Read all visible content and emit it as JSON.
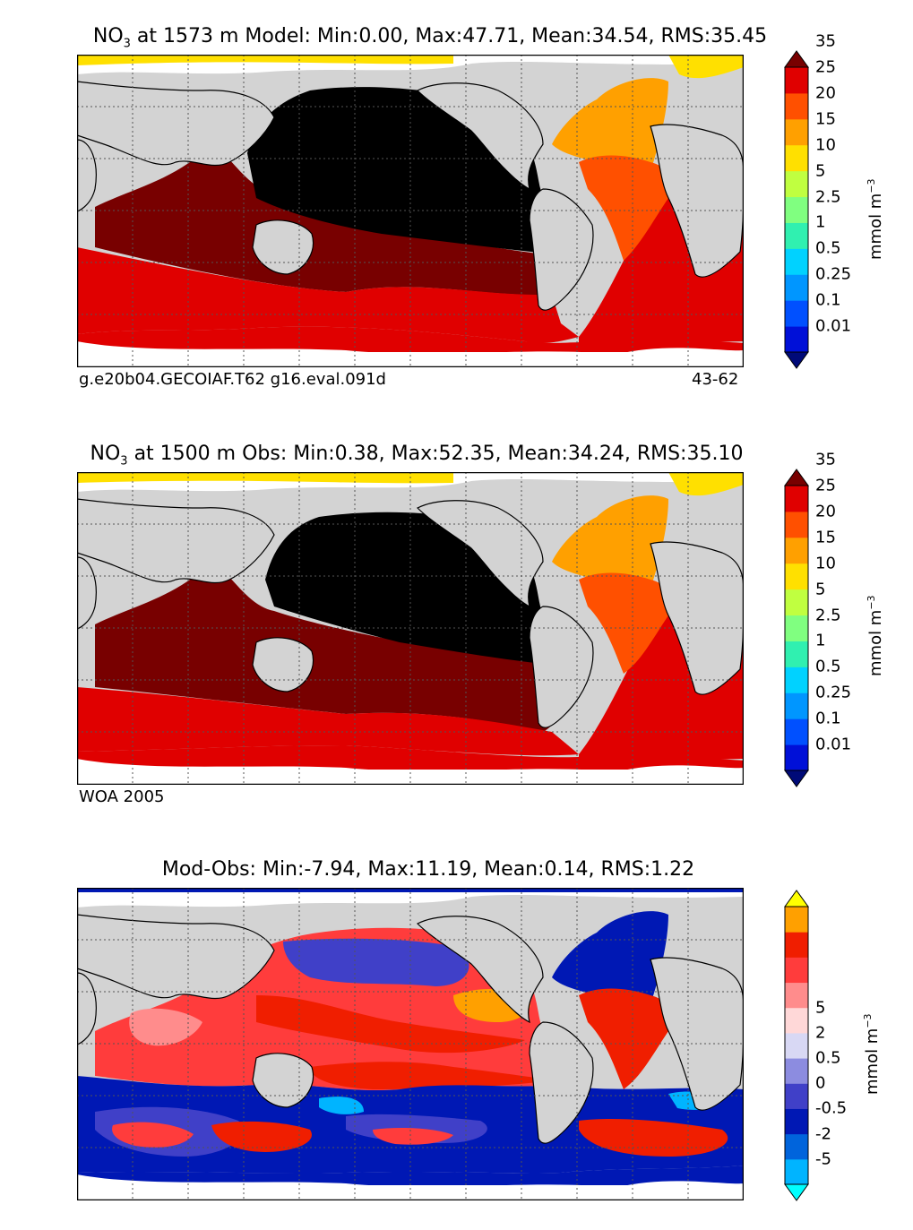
{
  "panels": [
    {
      "title_prefix": "NO",
      "title_sub": "3",
      "title_rest": " at 1573 m Model: Min:0.00, Max:47.71, Mean:34.54, RMS:35.45",
      "footer_left": "g.e20b04.GECOIAF.T62 g16.eval.091d",
      "footer_right": "43-62",
      "colorbar": {
        "ticks": [
          "0.01",
          "0.1",
          "0.25",
          "0.5",
          "1",
          "2.5",
          "5",
          "10",
          "15",
          "20",
          "25",
          "35"
        ],
        "colors": [
          "#000a78",
          "#0010d8",
          "#0050ff",
          "#0096ff",
          "#00d2ff",
          "#30f0b0",
          "#80ff80",
          "#c0ff40",
          "#ffe000",
          "#ffa000",
          "#ff5000",
          "#e00000",
          "#780000"
        ],
        "unit": "mmol m",
        "unit_exp": "−3"
      }
    },
    {
      "title_prefix": "NO",
      "title_sub": "3",
      "title_rest": " at 1500 m Obs: Min:0.38, Max:52.35, Mean:34.24, RMS:35.10",
      "footer_left": "WOA 2005",
      "footer_right": "",
      "colorbar": {
        "ticks": [
          "0.01",
          "0.1",
          "0.25",
          "0.5",
          "1",
          "2.5",
          "5",
          "10",
          "15",
          "20",
          "25",
          "35"
        ],
        "colors": [
          "#000a78",
          "#0010d8",
          "#0050ff",
          "#0096ff",
          "#00d2ff",
          "#30f0b0",
          "#80ff80",
          "#c0ff40",
          "#ffe000",
          "#ffa000",
          "#ff5000",
          "#e00000",
          "#780000"
        ],
        "unit": "mmol m",
        "unit_exp": "−3"
      }
    },
    {
      "title_prefix": "",
      "title_sub": "",
      "title_rest": "Mod-Obs: Min:-7.94, Max:11.19, Mean:0.14, RMS:1.22",
      "footer_left": "",
      "footer_right": "",
      "colorbar": {
        "ticks": [
          "-5",
          "-2",
          "-0.5",
          "0",
          "0.5",
          "2",
          "5"
        ],
        "colors": [
          "#00ffff",
          "#00b4ff",
          "#0064dc",
          "#0018b4",
          "#4040c8",
          "#8c8ce0",
          "#d8d8f4",
          "#ffd8d8",
          "#ff8c8c",
          "#ff3c3c",
          "#f01e00",
          "#ffa000",
          "#ffff00"
        ],
        "unit": "mmol m",
        "unit_exp": "−3"
      }
    }
  ],
  "map_colors": {
    "land": "#d3d3d3",
    "coast": "#000000",
    "grid": "#555555"
  }
}
